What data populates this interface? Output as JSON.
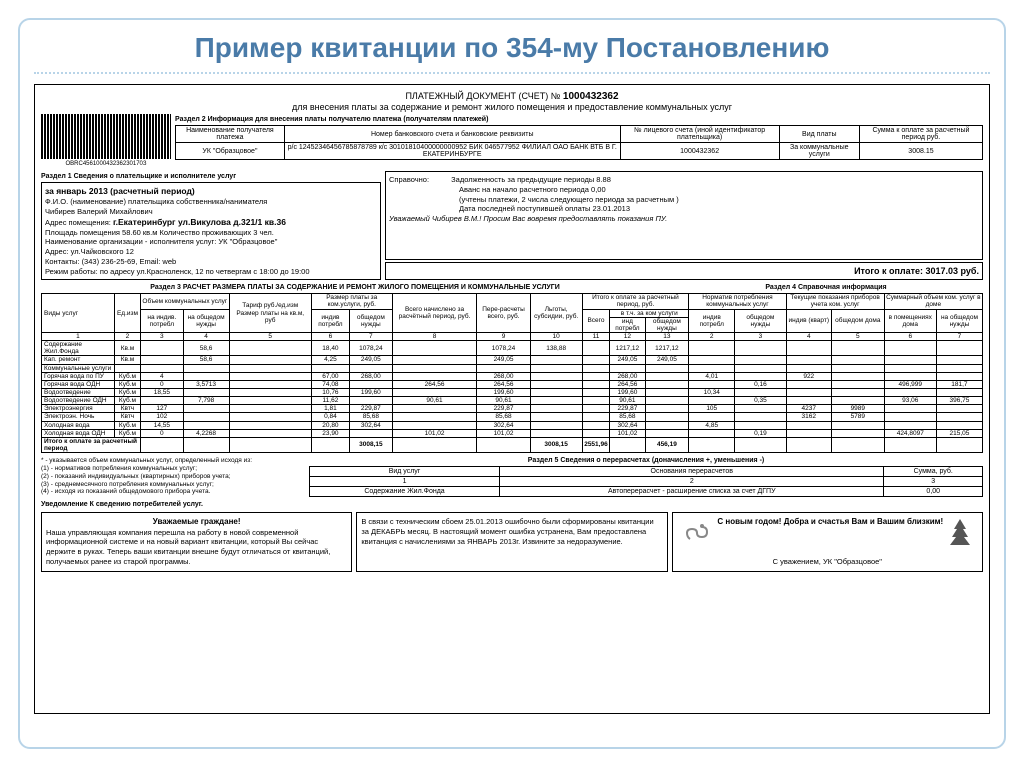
{
  "title": "Пример квитанции по 354-му Постановлению",
  "doc_header": {
    "line1_prefix": "ПЛАТЕЖНЫЙ ДОКУМЕНТ (СЧЕТ) №",
    "doc_no": "1000432362",
    "line2": "для внесения платы за содержание и ремонт жилого помещения и предоставление коммунальных услуг"
  },
  "barcode_text": "OBRC456100043236230170З",
  "sec2_title": "Раздел 2   Информация для внесения платы получателю платежа (получателям платежей)",
  "info_table": {
    "headers": [
      "Наименование получателя платежа",
      "Номер банковского счета и банковские реквизиты",
      "№ лицевого счета (иной идентификатор плательщика)",
      "Вид платы",
      "Сумма к оплате за расчетный период руб."
    ],
    "row": [
      "УК \"Образцовое\"",
      "р/с 12452346456785878789 к/с 30101810400000000952 БИК 046577952 ФИЛИАЛ ОАО БАНК ВТБ В Г. ЕКАТЕРИНБУРГЕ",
      "1000432362",
      "За коммунальные услуги",
      "3008.15"
    ]
  },
  "sec1_title": "Раздел 1   Сведения о плательщике и исполнителе услуг",
  "payer": {
    "period": "за январь 2013 (расчетный период)",
    "fio_lbl": "Ф.И.О. (наименование) плательщика собственника/нанимателя",
    "fio": "Чибирев Валерий Михайлович",
    "addr_lbl": "Адрес помещения:",
    "addr": "г.Екатеринбург ул.Викулова д.321/1 кв.36",
    "area": "Площадь помещения 58.60 кв.м        Количество проживающих 3 чел.",
    "org": "Наименование организации - исполнителя услуг: УК \"Образцовое\"",
    "org_addr": "Адрес: ул.Чайковского 12",
    "contact": "Контакты: (343) 236-25-69, Email: web",
    "hours": "Режим работы: по адресу ул.Красноленск, 12 по четвергам с 18:00 до 19:00"
  },
  "sprav": {
    "lbl": "Справочно:",
    "l1": "Задолженность за предыдущие периоды 8.88",
    "l2": "Аванс на начало расчетного периода 0,00",
    "l3": "(учтены платежи, 2 числа следующего периода за расчетным )",
    "l4": "Дата последней поступившей оплаты 23.01.2013",
    "note": "Уважаемый Чибирев В.М.! Просим Вас вовремя предоставлять показания ПУ."
  },
  "itogo": "Итого к оплате: 3017.03 руб.",
  "sec3_title": "Раздел 3   РАСЧЕТ РАЗМЕРА ПЛАТЫ ЗА СОДЕРЖАНИЕ И РЕМОНТ ЖИЛОГО ПОМЕЩЕНИЯ И КОММУНАЛЬНЫЕ УСЛУГИ",
  "sec4_title": "Раздел 4   Справочная информация",
  "main_headers": {
    "r1": [
      "Виды услуг",
      "Ед.изм",
      "Объем коммунальных услуг",
      "Тариф руб./ед.изм Размер платы на кв.м, руб",
      "Размер платы за ком.услуги, руб.",
      "Всего начислено за расчётный период, руб.",
      "Пере-расчеты всего, руб.",
      "Льготы, субсидии, руб.",
      "Итого к оплате за расчетный период, руб.",
      "Норматив потребления коммунальных услуг",
      "Текущие показания приборов учета ком. услуг",
      "Суммарный объем ком. услуг в доме"
    ],
    "sub_vol": [
      "на индив. потребл",
      "на общедом нужды"
    ],
    "sub_razm": [
      "индив потребл",
      "общедом нужды"
    ],
    "sub_itog": [
      "Всего",
      "в т.ч. за ком услуги"
    ],
    "sub_itog2": [
      "инд потребл",
      "общедом нужды"
    ],
    "sub_norm": [
      "индив потребл",
      "общедом нужды"
    ],
    "sub_pok": [
      "индив (кварт)",
      "общедом дома"
    ],
    "sub_sum": [
      "в помещениях дома",
      "на общедом нужды"
    ]
  },
  "col_nums_l": [
    "1",
    "2",
    "3",
    "4",
    "5",
    "6",
    "7",
    "8",
    "9",
    "10",
    "11",
    "12",
    "13"
  ],
  "col_nums_r": [
    "2",
    "3",
    "4",
    "5",
    "6",
    "7"
  ],
  "rows": [
    {
      "n": "Содержание Жил.Фонда",
      "u": "Кв.м",
      "v": [
        "",
        "58,6",
        "",
        "18,40",
        "1078,24",
        "",
        "1078,24",
        "138,88",
        "",
        "1217,12",
        "1217,12",
        "",
        ""
      ],
      "r": [
        "",
        "",
        "",
        "",
        "",
        ""
      ]
    },
    {
      "n": "Кап. ремонт",
      "u": "Кв.м",
      "v": [
        "",
        "58,6",
        "",
        "4,25",
        "249,05",
        "",
        "249,05",
        "",
        "",
        "249,05",
        "249,05",
        "",
        ""
      ],
      "r": [
        "",
        "",
        "",
        "",
        "",
        ""
      ]
    },
    {
      "n": "Коммунальные услуги",
      "u": "",
      "v": [
        "",
        "",
        "",
        "",
        "",
        "",
        "",
        "",
        "",
        "",
        "",
        "",
        ""
      ],
      "r": [
        "",
        "",
        "",
        "",
        "",
        ""
      ]
    },
    {
      "n": "Горячая вода по ПУ",
      "u": "Куб.м",
      "v": [
        "4",
        "",
        "",
        "67,00",
        "268,00",
        "",
        "268,00",
        "",
        "",
        "268,00",
        "",
        "268,00",
        ""
      ],
      "r": [
        "4,01",
        "",
        "922",
        "",
        "",
        ""
      ]
    },
    {
      "n": "Горячая вода ОДН",
      "u": "Куб.м",
      "v": [
        "0",
        "3,5713",
        "",
        "74,08",
        "",
        "264,56",
        "264,56",
        "",
        "",
        "264,56",
        "",
        "",
        "264,56"
      ],
      "r": [
        "",
        "0,16",
        "",
        "",
        "496,999",
        "181,7"
      ]
    },
    {
      "n": "Водоотведение",
      "u": "Куб.м",
      "v": [
        "18,55",
        "",
        "",
        "10,76",
        "199,60",
        "",
        "199,60",
        "",
        "",
        "199,60",
        "",
        "199,60",
        ""
      ],
      "r": [
        "10,34",
        "",
        "",
        "",
        "",
        ""
      ]
    },
    {
      "n": "Водоотведение ОДН",
      "u": "Куб.м",
      "v": [
        "",
        "7,798",
        "",
        "11,62",
        "",
        "90,61",
        "90,61",
        "",
        "",
        "90,61",
        "",
        "",
        "90,61"
      ],
      "r": [
        "",
        "0,35",
        "",
        "",
        "93,06",
        "396,75"
      ]
    },
    {
      "n": "Электроэнергия",
      "u": "Квтч",
      "v": [
        "127",
        "",
        "",
        "1,81",
        "229,87",
        "",
        "229,87",
        "",
        "",
        "229,87",
        "",
        "229,87",
        ""
      ],
      "r": [
        "105",
        "",
        "4237",
        "9989",
        "",
        ""
      ]
    },
    {
      "n": "Электроэн. Ночь",
      "u": "Квтч",
      "v": [
        "102",
        "",
        "",
        "0,84",
        "85,68",
        "",
        "85,68",
        "",
        "",
        "85,68",
        "",
        "85,68",
        ""
      ],
      "r": [
        "",
        "",
        "3162",
        "5789",
        "",
        ""
      ]
    },
    {
      "n": "Холодная вода",
      "u": "Куб.м",
      "v": [
        "14,55",
        "",
        "",
        "20,80",
        "302,64",
        "",
        "302,64",
        "",
        "",
        "302,64",
        "",
        "302,64",
        ""
      ],
      "r": [
        "4,85",
        "",
        "",
        "",
        "",
        ""
      ]
    },
    {
      "n": "Холодная вода ОДН",
      "u": "Куб.м",
      "v": [
        "0",
        "4,2268",
        "",
        "23,90",
        "",
        "101,02",
        "101,02",
        "",
        "",
        "101,02",
        "",
        "",
        "101,02"
      ],
      "r": [
        "",
        "0,19",
        "",
        "",
        "424,8097",
        "215,05"
      ]
    }
  ],
  "total_row": {
    "n": "Итого к оплате за расчетный период",
    "v": [
      "",
      "",
      "",
      "",
      "",
      "",
      "3008,15",
      "",
      "",
      "3008,15",
      "2551,96",
      "",
      "456,19"
    ]
  },
  "footnotes": "* - указывается объем коммунальных услуг, определенный исходя из:\n(1) - нормативов потребления коммунальных услуг;\n(2) - показаний индивидуальных (квартирных) приборов учета;\n(3) - среднемесячного потребления коммунальных услуг;\n(4) - исходя из показаний общедомового прибора учета.",
  "sec5_title": "Раздел 5   Сведения о перерасчетах (доначисления +, уменьшения -)",
  "sec5_headers": [
    "Вид услуг",
    "Основания перерасчетов",
    "Сумма, руб."
  ],
  "sec5_nums": [
    "1",
    "2",
    "3"
  ],
  "sec5_row": [
    "Содержание Жил.Фонда",
    "Автоперерасчет - расширение списка за счет ДГПУ",
    "0,00"
  ],
  "notice_lbl": "Уведомление       К сведению потребителей услуг.",
  "notice1_title": "Уважаемые граждане!",
  "notice1": "Наша управляющая компания перешла на работу в новой современной информационной системе и на новый вариант квитанции, который Вы сейчас держите в руках. Теперь ваши квитанции внешне будут отличаться от квитанций, получаемых ранее из старой программы.",
  "notice2": "В связи с техническим сбоем 25.01.2013 ошибочно были сформированы квитанции за ДЕКАБРЬ месяц. В настоящий момент ошибка устранена, Вам предоставлена квитанция с начислениями за ЯНВАРЬ 2013г. Извините за недоразумение.",
  "notice3_title": "С новым годом! Добра и счастья Вам и Вашим близким!",
  "notice3_sign": "С уважением, УК \"Образцовое\""
}
